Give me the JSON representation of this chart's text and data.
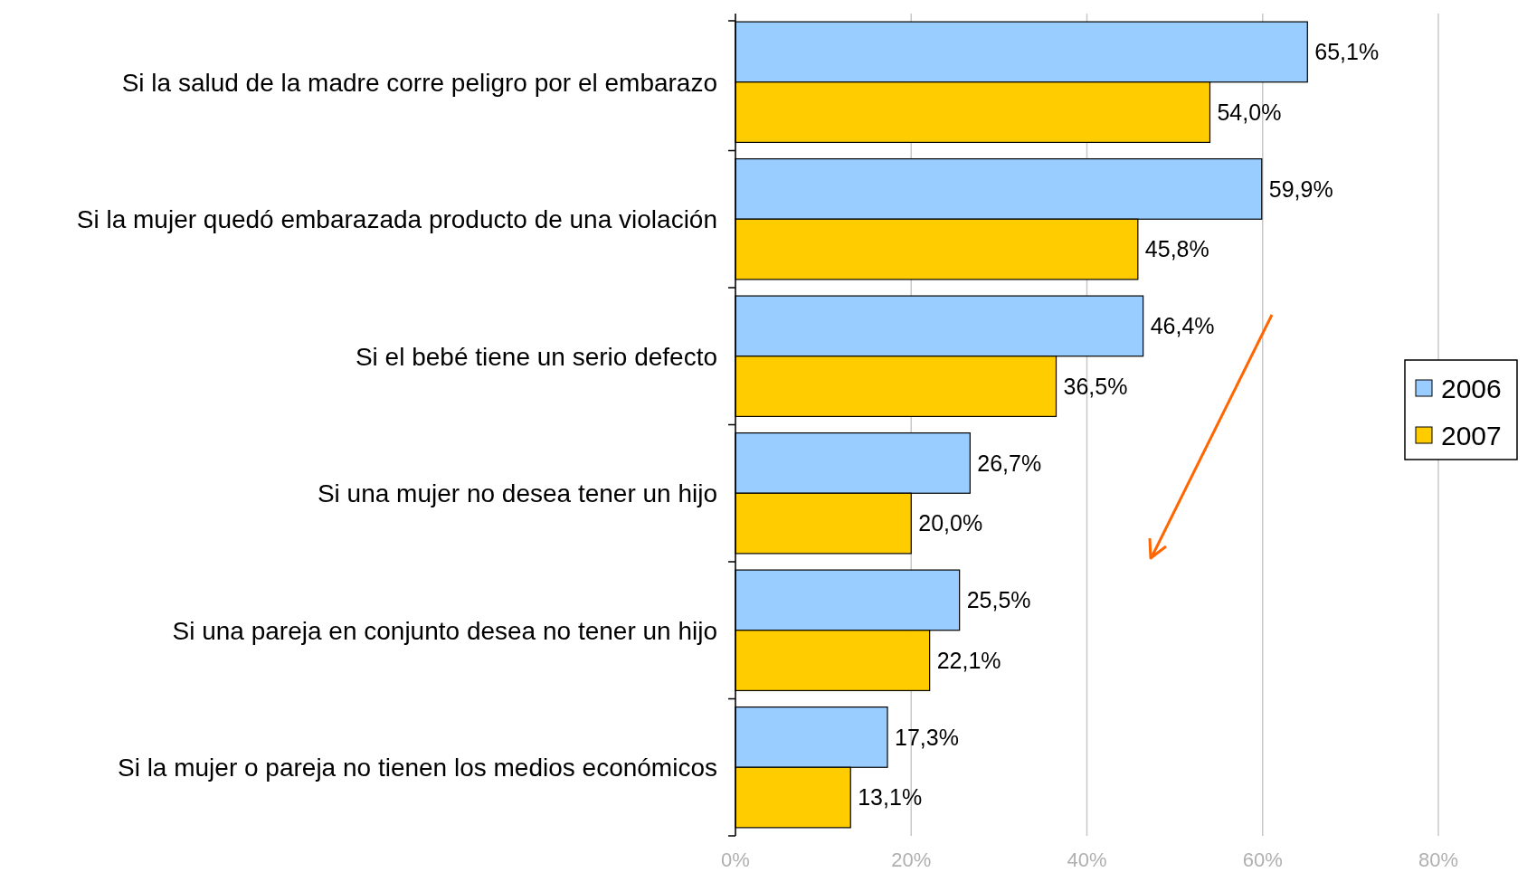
{
  "chart_data": {
    "type": "bar",
    "orientation": "horizontal",
    "categories": [
      "Si la salud de la madre corre peligro por el embarazo",
      "Si la mujer quedó embarazada producto de una violación",
      "Si el bebé tiene un serio defecto",
      "Si una mujer no desea tener un hijo",
      "Si una pareja en conjunto desea no tener un hijo",
      "Si la mujer o pareja no tienen los medios económicos"
    ],
    "series": [
      {
        "name": "2006",
        "color": "#99ccff",
        "values": [
          65.1,
          59.9,
          46.4,
          26.7,
          25.5,
          17.3
        ],
        "value_labels": [
          "65,1%",
          "59,9%",
          "46,4%",
          "26,7%",
          "25,5%",
          "17,3%"
        ]
      },
      {
        "name": "2007",
        "color": "#ffcc00",
        "values": [
          54.0,
          45.8,
          36.5,
          20.0,
          22.1,
          13.1
        ],
        "value_labels": [
          "54,0%",
          "45,8%",
          "36,5%",
          "20,0%",
          "22,1%",
          "13,1%"
        ]
      }
    ],
    "xlim": [
      0,
      80
    ],
    "xticks": [
      {
        "value": 0,
        "label": "0%"
      },
      {
        "value": 20,
        "label": "20%"
      },
      {
        "value": 40,
        "label": "40%"
      },
      {
        "value": 60,
        "label": "60%"
      },
      {
        "value": 80,
        "label": "80%"
      }
    ],
    "grid": "x",
    "legend": "right"
  }
}
